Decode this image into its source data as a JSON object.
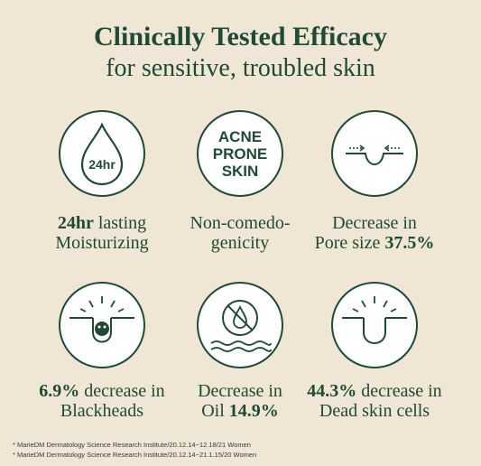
{
  "header": {
    "title": "Clinically Tested Efficacy",
    "subtitle": "for sensitive, troubled skin"
  },
  "colors": {
    "accent": "#1f4a35",
    "background": "#efe6d5",
    "badge": "#ffffff"
  },
  "items": [
    {
      "icon": "drop-24hr-icon",
      "icon_text": "24hr",
      "line1_bold": "24hr",
      "line1_rest": " lasting",
      "line2": "Moisturizing"
    },
    {
      "icon": "acne-prone-skin-icon",
      "icon_lines": [
        "ACNE",
        "PRONE",
        "SKIN"
      ],
      "line1": "Non-comedo-",
      "line2": "genicity"
    },
    {
      "icon": "pore-shrink-icon",
      "line1": "Decrease in",
      "line2_rest": "Pore size ",
      "line2_bold": "37.5%"
    },
    {
      "icon": "blackhead-icon",
      "line1_bold": "6.9%",
      "line1_rest": " decrease in",
      "line2": "Blackheads"
    },
    {
      "icon": "no-oil-icon",
      "line1": "Decrease in",
      "line2_rest": "Oil ",
      "line2_bold": "14.9%"
    },
    {
      "icon": "dead-skin-icon",
      "line1_bold": "44.3%",
      "line1_rest": " decrease in",
      "line2": "Dead skin cells"
    }
  ],
  "footnotes": [
    "* MarieDM Dermatology Science Research Institute/20.12.14~12.18/21 Women",
    "* MarieDM Dermatology Science Research Institute/20.12.14~21.1.15/20 Women"
  ]
}
